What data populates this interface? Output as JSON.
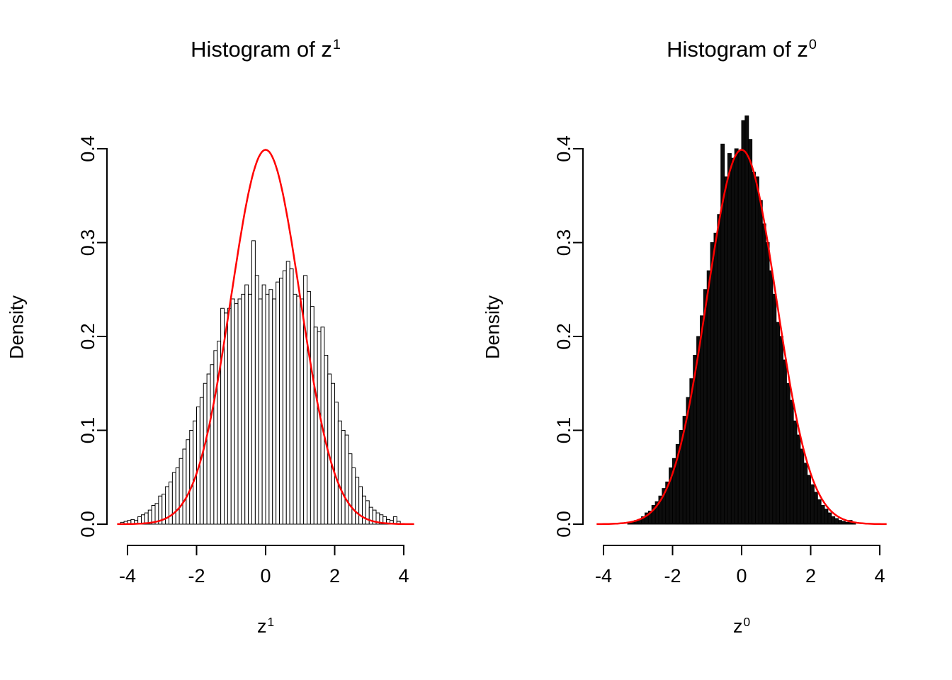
{
  "figure": {
    "background": "#ffffff",
    "axis_color": "#000000",
    "text_color": "#000000"
  },
  "chart_data": [
    {
      "type": "histogram",
      "title": "Histogram of z^1",
      "title_base": "Histogram of z",
      "title_sup": "1",
      "xlabel": "z^1",
      "xlabel_base": "z",
      "xlabel_sup": "1",
      "ylabel": "Density",
      "xlim": [
        -4,
        4
      ],
      "ylim": [
        0,
        0.4
      ],
      "x_ticks": [
        -4,
        -2,
        0,
        2,
        4
      ],
      "x_tick_labels": [
        "-4",
        "-2",
        "0",
        "2",
        "4"
      ],
      "y_ticks": [
        0,
        0.1,
        0.2,
        0.3,
        0.4
      ],
      "y_tick_labels": [
        "0.0",
        "0.1",
        "0.2",
        "0.3",
        "0.4"
      ],
      "grid": false,
      "bar_fill": "#ffffff",
      "bar_stroke": "#000000",
      "bin_start": -4.2,
      "bin_width": 0.1,
      "densities": [
        0.002,
        0.003,
        0.004,
        0.005,
        0.004,
        0.008,
        0.01,
        0.012,
        0.015,
        0.02,
        0.022,
        0.03,
        0.032,
        0.04,
        0.045,
        0.055,
        0.06,
        0.07,
        0.08,
        0.09,
        0.1,
        0.11,
        0.125,
        0.135,
        0.15,
        0.16,
        0.17,
        0.185,
        0.195,
        0.23,
        0.225,
        0.23,
        0.24,
        0.235,
        0.24,
        0.245,
        0.255,
        0.245,
        0.302,
        0.265,
        0.24,
        0.255,
        0.245,
        0.25,
        0.24,
        0.258,
        0.262,
        0.27,
        0.28,
        0.272,
        0.245,
        0.243,
        0.24,
        0.265,
        0.248,
        0.232,
        0.21,
        0.205,
        0.21,
        0.18,
        0.16,
        0.15,
        0.13,
        0.11,
        0.1,
        0.095,
        0.075,
        0.06,
        0.05,
        0.04,
        0.03,
        0.025,
        0.018,
        0.015,
        0.012,
        0.01,
        0.008,
        0.005,
        0.004,
        0.008,
        0.003
      ],
      "curve": {
        "type": "normal-density",
        "mean": 0,
        "sd": 1,
        "peak": 0.3989,
        "color": "#ff0000",
        "x_from": -4.3,
        "x_to": 4.3
      }
    },
    {
      "type": "histogram",
      "title": "Histogram of z^0",
      "title_base": "Histogram of z",
      "title_sup": "0",
      "xlabel": "z^0",
      "xlabel_base": "z",
      "xlabel_sup": "0",
      "ylabel": "Density",
      "xlim": [
        -4,
        4
      ],
      "ylim": [
        0,
        0.4
      ],
      "x_ticks": [
        -4,
        -2,
        0,
        2,
        4
      ],
      "x_tick_labels": [
        "-4",
        "-2",
        "0",
        "2",
        "4"
      ],
      "y_ticks": [
        0,
        0.1,
        0.2,
        0.3,
        0.4
      ],
      "y_tick_labels": [
        "0.0",
        "0.1",
        "0.2",
        "0.3",
        "0.4"
      ],
      "grid": false,
      "bar_fill": "#0d0d0d",
      "bar_stroke": "#000000",
      "bin_start": -3.3,
      "bin_width": 0.1,
      "densities": [
        0.002,
        0.002,
        0.004,
        0.005,
        0.008,
        0.012,
        0.014,
        0.02,
        0.024,
        0.03,
        0.038,
        0.045,
        0.06,
        0.07,
        0.085,
        0.1,
        0.115,
        0.135,
        0.155,
        0.18,
        0.2,
        0.222,
        0.25,
        0.27,
        0.3,
        0.31,
        0.33,
        0.405,
        0.37,
        0.395,
        0.39,
        0.4,
        0.398,
        0.43,
        0.435,
        0.41,
        0.375,
        0.37,
        0.345,
        0.32,
        0.3,
        0.27,
        0.245,
        0.215,
        0.2,
        0.175,
        0.15,
        0.132,
        0.11,
        0.095,
        0.08,
        0.065,
        0.052,
        0.042,
        0.034,
        0.026,
        0.02,
        0.016,
        0.012,
        0.008,
        0.006,
        0.004,
        0.003,
        0.002,
        0.004,
        0.002
      ],
      "curve": {
        "type": "normal-density",
        "mean": 0,
        "sd": 1,
        "peak": 0.3989,
        "color": "#ff0000",
        "x_from": -4.2,
        "x_to": 4.2
      }
    }
  ]
}
